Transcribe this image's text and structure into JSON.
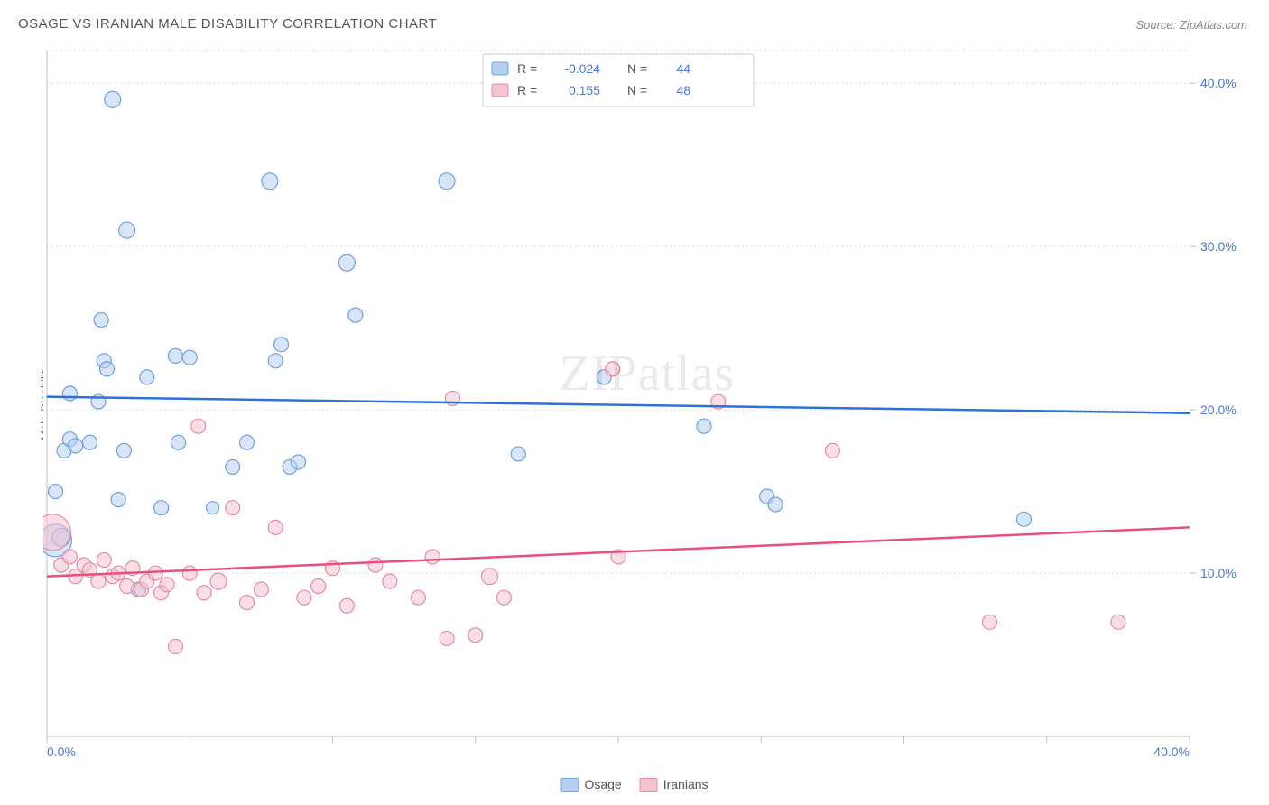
{
  "title": "OSAGE VS IRANIAN MALE DISABILITY CORRELATION CHART",
  "source_label": "Source: ZipAtlas.com",
  "ylabel": "Male Disability",
  "watermark": "ZIPatlas",
  "chart": {
    "type": "scatter",
    "background_color": "#ffffff",
    "grid_color": "#d9d9d9",
    "grid_dash": "2,3",
    "axis_line_color": "#bfbfbf",
    "tick_label_color": "#4a78d6",
    "tick_fontsize": 14,
    "xlim": [
      0,
      40
    ],
    "ylim": [
      0,
      42
    ],
    "x_ticks": [
      0,
      5,
      10,
      15,
      20,
      25,
      30,
      35,
      40
    ],
    "x_tick_labels": [
      "0.0%",
      "",
      "",
      "",
      "",
      "",
      "",
      "",
      "40.0%"
    ],
    "y_ticks": [
      10,
      20,
      30,
      40
    ],
    "y_tick_labels": [
      "10.0%",
      "20.0%",
      "30.0%",
      "40.0%"
    ],
    "legend_top": {
      "border_color": "#cccccc",
      "bg": "#ffffff",
      "font_size": 14,
      "label_color": "#555555",
      "value_color": "#4a78d6",
      "rows": [
        {
          "swatch_fill": "#b7d0f1",
          "swatch_stroke": "#6ea0e0",
          "r": "-0.024",
          "n": "44"
        },
        {
          "swatch_fill": "#f6c3d0",
          "swatch_stroke": "#e78ba4",
          "r": "0.155",
          "n": "48"
        }
      ]
    },
    "legend_bottom": {
      "items": [
        {
          "label": "Osage",
          "swatch_fill": "#b7d0f1",
          "swatch_stroke": "#6ea0e0"
        },
        {
          "label": "Iranians",
          "swatch_fill": "#f6c3d0",
          "swatch_stroke": "#e78ba4"
        }
      ]
    },
    "series": [
      {
        "name": "Osage",
        "marker_fill": "#b7d0f1",
        "marker_stroke": "#6ea0e0",
        "marker_fill_opacity": 0.55,
        "marker_r": 8,
        "points": [
          [
            0.3,
            15.0,
            8
          ],
          [
            0.3,
            12.0,
            18
          ],
          [
            0.6,
            17.5,
            8
          ],
          [
            0.8,
            18.2,
            8
          ],
          [
            1.0,
            17.8,
            8
          ],
          [
            0.8,
            21.0,
            8
          ],
          [
            1.5,
            18.0,
            8
          ],
          [
            1.8,
            20.5,
            8
          ],
          [
            1.9,
            25.5,
            8
          ],
          [
            2.0,
            23.0,
            8
          ],
          [
            2.1,
            22.5,
            8
          ],
          [
            2.3,
            39.0,
            9
          ],
          [
            2.5,
            14.5,
            8
          ],
          [
            2.7,
            17.5,
            8
          ],
          [
            2.8,
            31.0,
            9
          ],
          [
            3.2,
            9.0,
            8
          ],
          [
            3.5,
            22.0,
            8
          ],
          [
            4.0,
            14.0,
            8
          ],
          [
            4.5,
            23.3,
            8
          ],
          [
            4.6,
            18.0,
            8
          ],
          [
            5.0,
            23.2,
            8
          ],
          [
            5.8,
            14.0,
            7
          ],
          [
            6.5,
            16.5,
            8
          ],
          [
            7.0,
            18.0,
            8
          ],
          [
            7.8,
            34.0,
            9
          ],
          [
            8.0,
            23.0,
            8
          ],
          [
            8.2,
            24.0,
            8
          ],
          [
            8.5,
            16.5,
            8
          ],
          [
            8.8,
            16.8,
            8
          ],
          [
            10.5,
            29.0,
            9
          ],
          [
            10.8,
            25.8,
            8
          ],
          [
            14.0,
            34.0,
            9
          ],
          [
            16.5,
            17.3,
            8
          ],
          [
            19.5,
            22.0,
            8
          ],
          [
            23.0,
            19.0,
            8
          ],
          [
            25.2,
            14.7,
            8
          ],
          [
            25.5,
            14.2,
            8
          ],
          [
            34.2,
            13.3,
            8
          ],
          [
            0.5,
            12.2,
            10
          ]
        ],
        "trend": {
          "y1": 20.8,
          "y2": 19.8,
          "stroke": "#2f6fd8",
          "width": 2.5
        }
      },
      {
        "name": "Iranians",
        "marker_fill": "#f6c3d0",
        "marker_stroke": "#e78ba4",
        "marker_fill_opacity": 0.55,
        "marker_r": 8,
        "points": [
          [
            0.2,
            12.5,
            20
          ],
          [
            0.5,
            10.5,
            8
          ],
          [
            0.8,
            11.0,
            8
          ],
          [
            1.0,
            9.8,
            8
          ],
          [
            1.3,
            10.5,
            8
          ],
          [
            1.5,
            10.2,
            8
          ],
          [
            1.8,
            9.5,
            8
          ],
          [
            2.0,
            10.8,
            8
          ],
          [
            2.3,
            9.8,
            8
          ],
          [
            2.5,
            10.0,
            8
          ],
          [
            2.8,
            9.2,
            8
          ],
          [
            3.0,
            10.3,
            8
          ],
          [
            3.3,
            9.0,
            8
          ],
          [
            3.5,
            9.5,
            8
          ],
          [
            3.8,
            10.0,
            8
          ],
          [
            4.0,
            8.8,
            8
          ],
          [
            4.2,
            9.3,
            8
          ],
          [
            4.5,
            5.5,
            8
          ],
          [
            5.0,
            10.0,
            8
          ],
          [
            5.3,
            19.0,
            8
          ],
          [
            5.5,
            8.8,
            8
          ],
          [
            6.0,
            9.5,
            9
          ],
          [
            6.5,
            14.0,
            8
          ],
          [
            7.0,
            8.2,
            8
          ],
          [
            7.5,
            9.0,
            8
          ],
          [
            8.0,
            12.8,
            8
          ],
          [
            9.0,
            8.5,
            8
          ],
          [
            9.5,
            9.2,
            8
          ],
          [
            10.0,
            10.3,
            8
          ],
          [
            10.5,
            8.0,
            8
          ],
          [
            11.5,
            10.5,
            8
          ],
          [
            12.0,
            9.5,
            8
          ],
          [
            13.0,
            8.5,
            8
          ],
          [
            13.5,
            11.0,
            8
          ],
          [
            14.0,
            6.0,
            8
          ],
          [
            14.2,
            20.7,
            8
          ],
          [
            15.0,
            6.2,
            8
          ],
          [
            15.5,
            9.8,
            9
          ],
          [
            16.0,
            8.5,
            8
          ],
          [
            19.8,
            22.5,
            8
          ],
          [
            20.0,
            11.0,
            8
          ],
          [
            23.5,
            20.5,
            8
          ],
          [
            27.5,
            17.5,
            8
          ],
          [
            33.0,
            7.0,
            8
          ],
          [
            37.5,
            7.0,
            8
          ]
        ],
        "trend": {
          "y1": 9.8,
          "y2": 12.8,
          "stroke": "#e94f7d",
          "width": 2.5
        }
      }
    ]
  }
}
